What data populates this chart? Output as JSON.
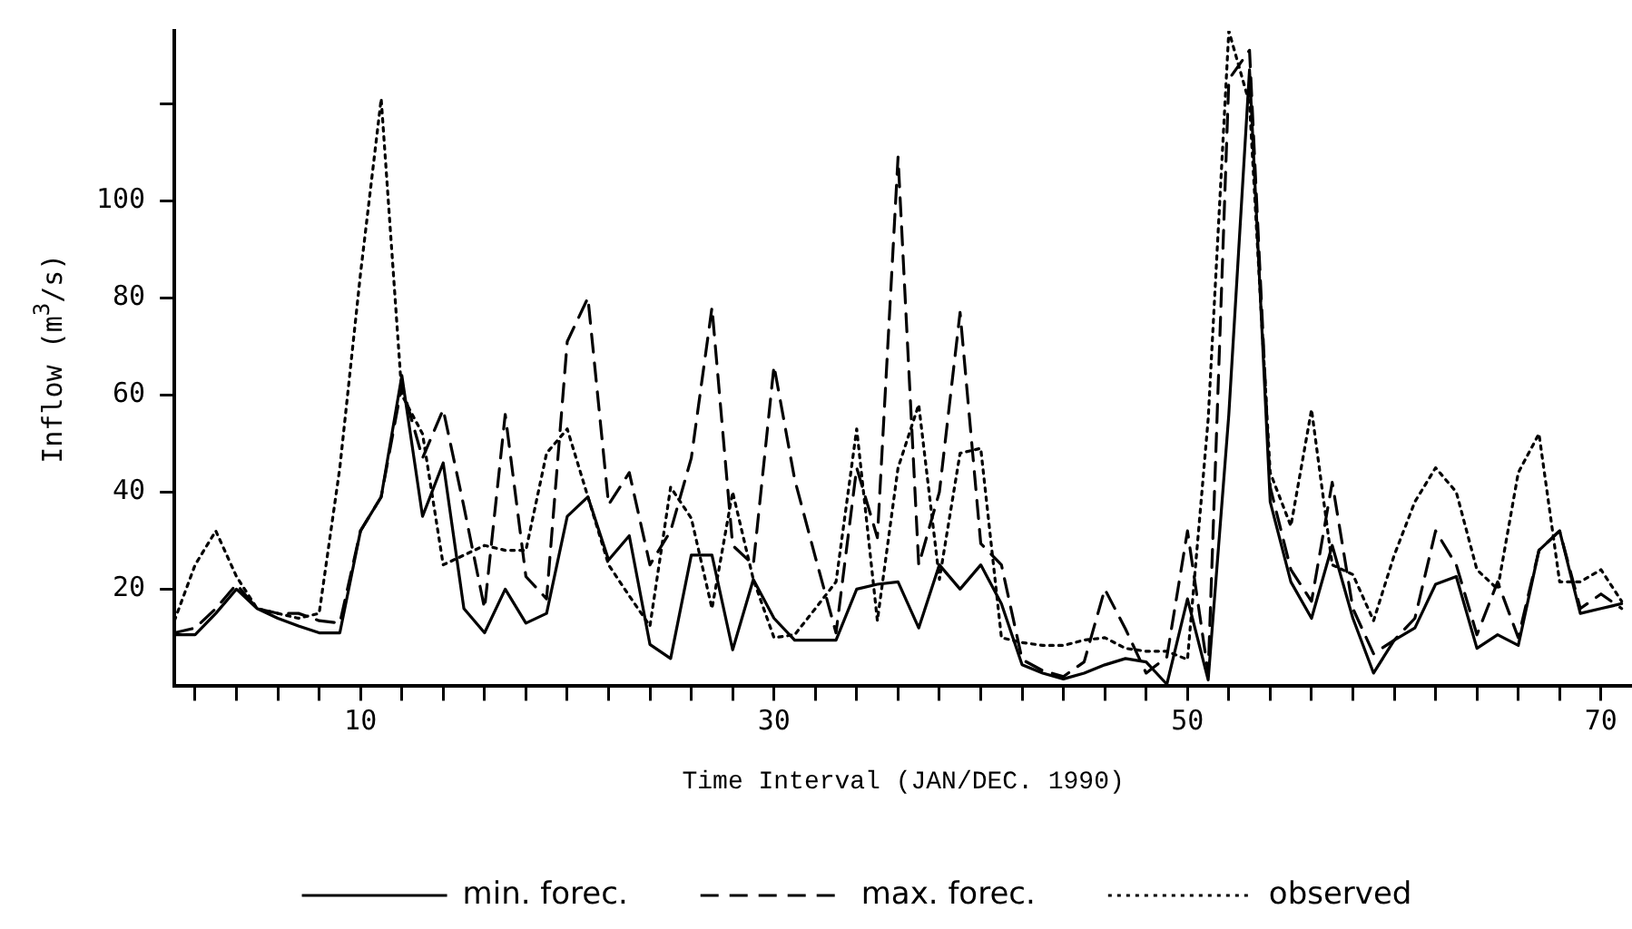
{
  "chart_data": {
    "type": "line",
    "xlabel": "Time Interval (JAN/DEC. 1990)",
    "ylabel": "Inflow (m$^{3}$/s)",
    "x": [
      1,
      2,
      3,
      4,
      5,
      6,
      7,
      8,
      9,
      10,
      11,
      12,
      13,
      14,
      15,
      16,
      17,
      18,
      19,
      20,
      21,
      22,
      23,
      24,
      25,
      26,
      27,
      28,
      29,
      30,
      31,
      32,
      33,
      34,
      35,
      36,
      37,
      38,
      39,
      40,
      41,
      42,
      43,
      44,
      45,
      46,
      47,
      48,
      49,
      50,
      51,
      52,
      53,
      54,
      55,
      56,
      57,
      58,
      59,
      60,
      61,
      62,
      63,
      64,
      65,
      66,
      67,
      68,
      69,
      70,
      71
    ],
    "series": [
      {
        "name": "min. forec.",
        "color": "#000000",
        "line_style": "solid",
        "values": [
          10.6,
          10.6,
          15,
          20,
          16,
          14,
          12.4,
          11,
          11,
          32,
          39,
          64,
          35,
          46,
          16,
          11,
          20,
          13,
          15,
          35,
          39,
          26,
          31,
          8.6,
          5.7,
          27,
          27,
          7.5,
          22,
          14,
          9.5,
          9.5,
          9.5,
          20,
          21,
          21.5,
          12,
          25,
          20,
          25,
          17,
          4.4,
          2.7,
          1.5,
          2.7,
          4.4,
          5.7,
          5,
          0.4,
          18,
          1.3,
          56,
          127,
          38,
          21.5,
          14,
          29,
          14,
          2.7,
          9.5,
          12,
          21,
          22.6,
          7.8,
          10.6,
          8.4,
          28,
          32,
          15,
          16,
          17
        ]
      },
      {
        "name": "max. forec.",
        "color": "#000000",
        "line_style": "dashed",
        "values": [
          11,
          12,
          16,
          21,
          16,
          15,
          15,
          13.5,
          13,
          32,
          39,
          62,
          47,
          57,
          37,
          16,
          56,
          22.6,
          18,
          71,
          80,
          37.4,
          44,
          25,
          32,
          47,
          78,
          29,
          25,
          66,
          42.6,
          26.6,
          11,
          45,
          30.6,
          109,
          25,
          40,
          77,
          29.4,
          25,
          5.5,
          3.2,
          2,
          5,
          20,
          11.8,
          2.7,
          6,
          32,
          2.7,
          125,
          131,
          41,
          24,
          17.5,
          42,
          16,
          6.7,
          9.5,
          14,
          32,
          25,
          10.6,
          21.5,
          10,
          28,
          32,
          16,
          19,
          16
        ]
      },
      {
        "name": "observed",
        "color": "#000000",
        "line_style": "dotted",
        "values": [
          13.5,
          25,
          32,
          22.6,
          16,
          15,
          14,
          15,
          45,
          85,
          121,
          60,
          52,
          25,
          27,
          29,
          28,
          28,
          48,
          53,
          39,
          25,
          18.6,
          12.4,
          41,
          34.6,
          16,
          40,
          22,
          10,
          10.6,
          16,
          21.5,
          53,
          13.5,
          45,
          58,
          22,
          48,
          49,
          10,
          9,
          8.4,
          8.4,
          9.5,
          10,
          7.8,
          7.2,
          7.2,
          5.5,
          55,
          135,
          120,
          44,
          33,
          57,
          25,
          23,
          13.5,
          27,
          38,
          45,
          40,
          24,
          20,
          44,
          52,
          21.5,
          21.5,
          24,
          17.5
        ]
      }
    ],
    "xlim": [
      1,
      71.5
    ],
    "xticks": [
      {
        "value": 2,
        "label": null
      },
      {
        "value": 4,
        "label": null
      },
      {
        "value": 6,
        "label": null
      },
      {
        "value": 8,
        "label": null
      },
      10,
      {
        "value": 12,
        "label": null
      },
      {
        "value": 14,
        "label": null
      },
      {
        "value": 16,
        "label": null
      },
      {
        "value": 18,
        "label": null
      },
      {
        "value": 20,
        "label": null
      },
      {
        "value": 22,
        "label": null
      },
      {
        "value": 24,
        "label": null
      },
      {
        "value": 26,
        "label": null
      },
      {
        "value": 28,
        "label": null
      },
      30,
      {
        "value": 32,
        "label": null
      },
      {
        "value": 34,
        "label": null
      },
      {
        "value": 36,
        "label": null
      },
      {
        "value": 38,
        "label": null
      },
      {
        "value": 40,
        "label": null
      },
      {
        "value": 42,
        "label": null
      },
      {
        "value": 44,
        "label": null
      },
      {
        "value": 46,
        "label": null
      },
      {
        "value": 48,
        "label": null
      },
      50,
      {
        "value": 52,
        "label": null
      },
      {
        "value": 54,
        "label": null
      },
      {
        "value": 56,
        "label": null
      },
      {
        "value": 58,
        "label": null
      },
      {
        "value": 60,
        "label": null
      },
      {
        "value": 62,
        "label": null
      },
      {
        "value": 64,
        "label": null
      },
      {
        "value": 66,
        "label": null
      },
      {
        "value": 68,
        "label": null
      },
      70
    ],
    "ylim": [
      0,
      135
    ],
    "yticks": [
      20,
      40,
      60,
      80,
      100,
      {
        "value": 120,
        "label": null
      }
    ],
    "grid": false,
    "legend": "bottom",
    "marker": "none"
  }
}
